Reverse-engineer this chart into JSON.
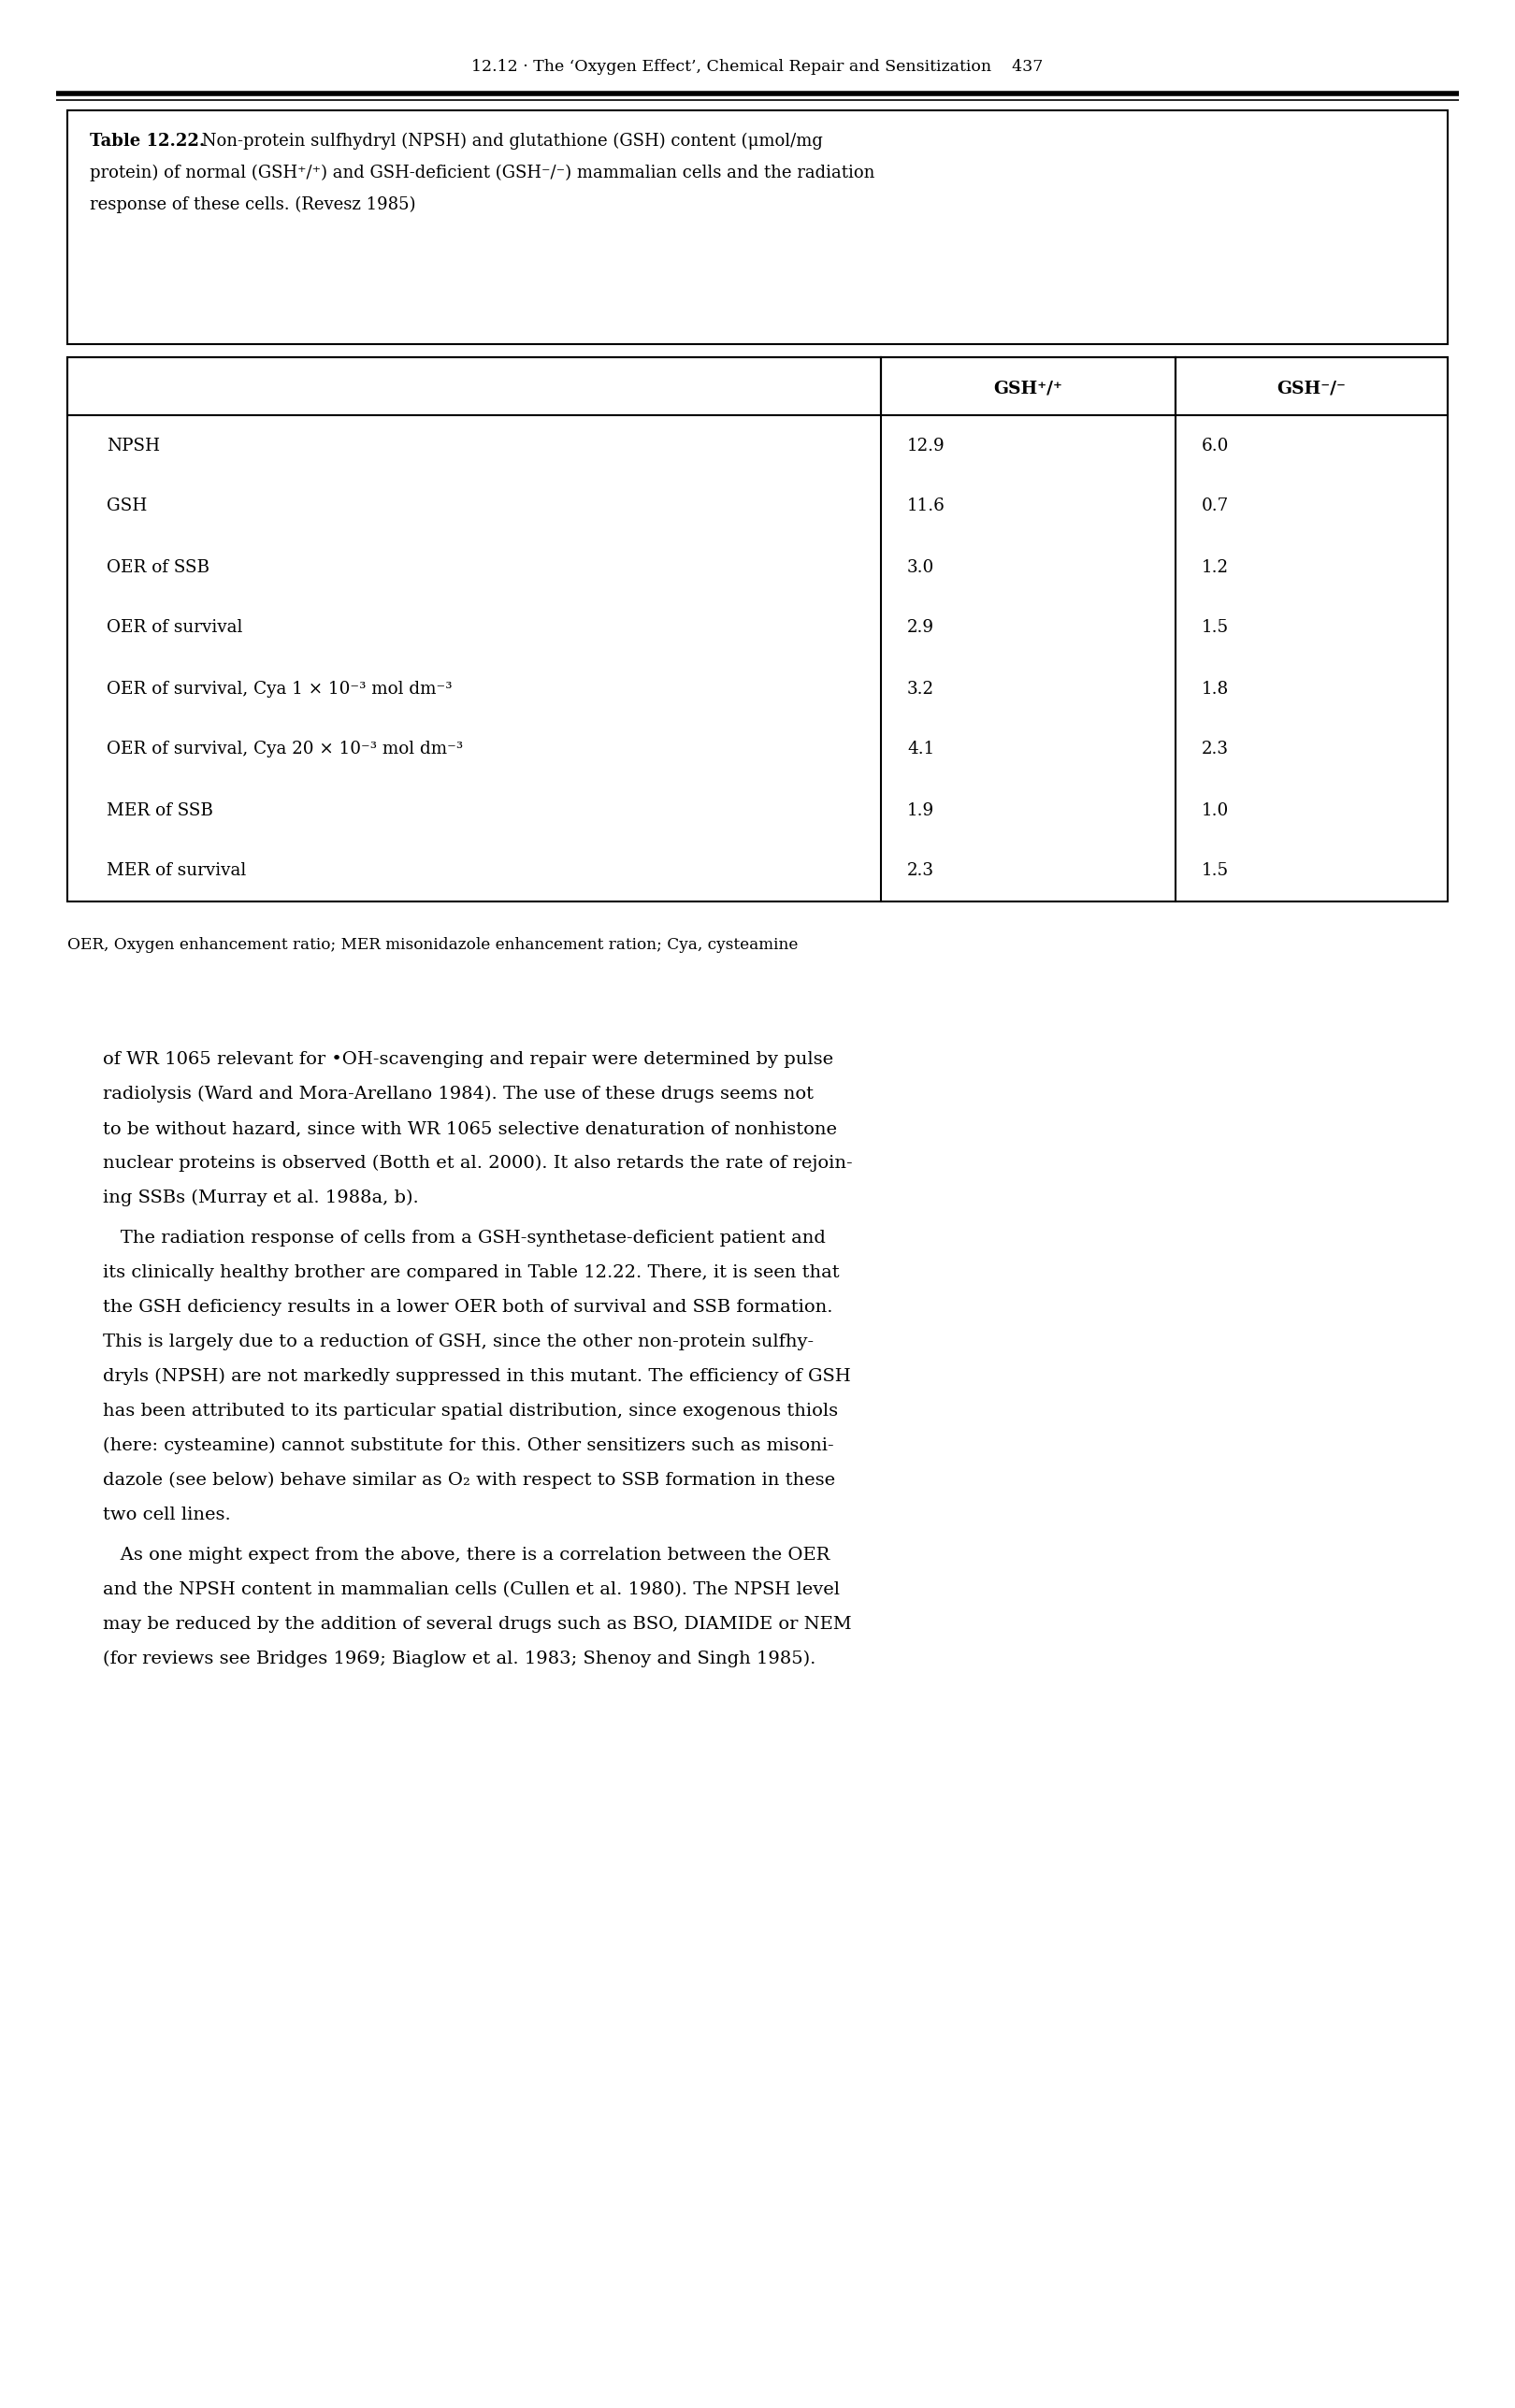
{
  "header_text": "12.12 · The ‘Oxygen Effect’, Chemical Repair and Sensitization    437",
  "caption_bold": "Table 12.22.",
  "caption_line1_normal": " Non-protein sulfhydryl (NPSH) and glutathione (GSH) content (μmol/mg",
  "caption_line2": "protein) of normal (GSH⁺/⁺) and GSH-deficient (GSH⁻/⁻) mammalian cells and the radiation",
  "caption_line3": "response of these cells. (Revesz 1985)",
  "col_headers": [
    "GSH⁺/⁺",
    "GSH⁻/⁻"
  ],
  "rows": [
    [
      "NPSH",
      "12.9",
      "6.0"
    ],
    [
      "GSH",
      "11.6",
      "0.7"
    ],
    [
      "OER of SSB",
      "3.0",
      "1.2"
    ],
    [
      "OER of survival",
      "2.9",
      "1.5"
    ],
    [
      "OER of survival, Cya 1 × 10⁻³ mol dm⁻³",
      "3.2",
      "1.8"
    ],
    [
      "OER of survival, Cya 20 × 10⁻³ mol dm⁻³",
      "4.1",
      "2.3"
    ],
    [
      "MER of SSB",
      "1.9",
      "1.0"
    ],
    [
      "MER of survival",
      "2.3",
      "1.5"
    ]
  ],
  "footnote": "OER, Oxygen enhancement ratio; MER misonidazole enhancement ration; Cya, cysteamine",
  "para1_lines": [
    "of WR 1065 relevant for •OH-scavenging and repair were determined by pulse",
    "radiolysis (Ward and Mora-Arellano 1984). The use of these drugs seems not",
    "to be without hazard, since with WR 1065 selective denaturation of nonhistone",
    "nuclear proteins is observed (Botth et al. 2000). It also retards the rate of rejoin-",
    "ing SSBs (Murray et al. 1988a, b)."
  ],
  "para2_lines": [
    "   The radiation response of cells from a GSH-synthetase-deficient patient and",
    "its clinically healthy brother are compared in Table 12.22. There, it is seen that",
    "the GSH deficiency results in a lower OER both of survival and SSB formation.",
    "This is largely due to a reduction of GSH, since the other non-protein sulfhy-",
    "dryls (NPSH) are not markedly suppressed in this mutant. The efficiency of GSH",
    "has been attributed to its particular spatial distribution, since exogenous thiols",
    "(here: cysteamine) cannot substitute for this. Other sensitizers such as misoni-",
    "dazole (see below) behave similar as O₂ with respect to SSB formation in these",
    "two cell lines."
  ],
  "para3_lines": [
    "   As one might expect from the above, there is a correlation between the OER",
    "and the NPSH content in mammalian cells (Cullen et al. 1980). The NPSH level",
    "may be reduced by the addition of several drugs such as BSO, DIAMIDE or NEM",
    "(for reviews see Bridges 1969; Biaglow et al. 1983; Shenoy and Singh 1985)."
  ],
  "bg_color": "#ffffff",
  "text_color": "#000000"
}
